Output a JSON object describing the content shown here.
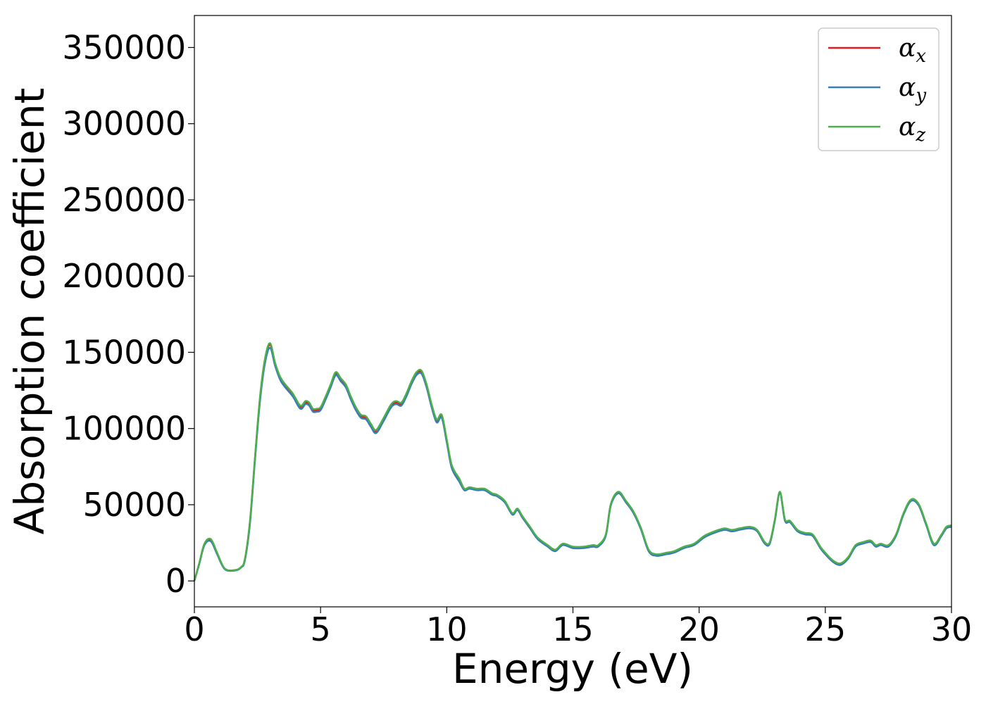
{
  "chart_data": {
    "type": "line",
    "xlabel": "Energy (eV)",
    "ylabel": "Absorption coefficient",
    "xlim": [
      0,
      30
    ],
    "ylim": [
      -17000,
      371000
    ],
    "xticks": [
      0,
      5,
      10,
      15,
      20,
      25,
      30
    ],
    "xtick_labels": [
      "0",
      "5",
      "10",
      "15",
      "20",
      "25",
      "30"
    ],
    "yticks": [
      0,
      50000,
      100000,
      150000,
      200000,
      250000,
      300000,
      350000
    ],
    "ytick_labels": [
      "0",
      "50000",
      "100000",
      "150000",
      "200000",
      "250000",
      "300000",
      "350000"
    ],
    "grid": false,
    "legend_position": "top-right",
    "x": [
      0,
      0.2,
      0.4,
      0.65,
      0.9,
      1.2,
      1.6,
      1.85,
      2.0,
      2.2,
      2.4,
      2.6,
      2.8,
      3.0,
      3.2,
      3.4,
      3.6,
      3.9,
      4.2,
      4.4,
      4.55,
      4.7,
      4.85,
      5.0,
      5.2,
      5.4,
      5.6,
      5.8,
      6.0,
      6.2,
      6.4,
      6.6,
      6.8,
      7.0,
      7.2,
      7.5,
      7.8,
      8.0,
      8.2,
      8.4,
      8.6,
      8.8,
      9.0,
      9.2,
      9.4,
      9.6,
      9.8,
      10.0,
      10.2,
      10.5,
      10.7,
      10.9,
      11.2,
      11.5,
      11.8,
      12.0,
      12.3,
      12.6,
      12.8,
      13.0,
      13.3,
      13.6,
      14.0,
      14.3,
      14.6,
      15.0,
      15.4,
      15.8,
      16.0,
      16.3,
      16.5,
      16.8,
      17.1,
      17.4,
      17.7,
      18.0,
      18.3,
      18.7,
      19.0,
      19.4,
      19.8,
      20.2,
      20.6,
      21.0,
      21.3,
      21.6,
      22.0,
      22.3,
      22.6,
      22.8,
      23.0,
      23.2,
      23.4,
      23.6,
      23.9,
      24.2,
      24.5,
      24.8,
      25.0,
      25.3,
      25.6,
      25.9,
      26.2,
      26.5,
      26.8,
      27.0,
      27.2,
      27.5,
      27.8,
      28.1,
      28.4,
      28.7,
      29.0,
      29.3,
      29.6,
      29.8,
      30.0
    ],
    "series": [
      {
        "name": "αx",
        "color": "#e41a1c",
        "values": [
          0,
          12000,
          24000,
          27000,
          18000,
          8000,
          7000,
          9000,
          14000,
          38000,
          80000,
          120000,
          145000,
          155000,
          142000,
          133000,
          128000,
          122000,
          114000,
          117000,
          116000,
          112000,
          112000,
          113000,
          120000,
          128000,
          136000,
          132000,
          128000,
          120000,
          113000,
          108000,
          107000,
          102000,
          98000,
          106000,
          115000,
          117000,
          116000,
          122000,
          130000,
          136000,
          137000,
          128000,
          115000,
          105000,
          108000,
          92000,
          75000,
          66000,
          60000,
          61000,
          60000,
          60000,
          57000,
          56000,
          52000,
          44000,
          47000,
          42000,
          35000,
          28000,
          23000,
          20000,
          24000,
          22000,
          22000,
          23000,
          23000,
          30000,
          50000,
          58000,
          52000,
          45000,
          34000,
          20000,
          17000,
          18000,
          19000,
          22000,
          24000,
          29000,
          32000,
          34000,
          33000,
          34000,
          35000,
          33000,
          25000,
          25000,
          40000,
          58000,
          40000,
          39000,
          33000,
          31000,
          30000,
          22000,
          18000,
          13000,
          11000,
          15000,
          23000,
          25000,
          26000,
          23000,
          24000,
          23000,
          30000,
          44000,
          53000,
          50000,
          37000,
          24000,
          30000,
          35000,
          36000
        ]
      },
      {
        "name": "αy",
        "color": "#377eb8",
        "values": [
          0,
          11500,
          23500,
          26000,
          17500,
          7800,
          6800,
          8800,
          13500,
          37000,
          79000,
          118000,
          143000,
          153000,
          141000,
          132000,
          127000,
          121000,
          113000,
          116000,
          115000,
          111000,
          111000,
          112000,
          119000,
          127000,
          135000,
          131000,
          127000,
          119000,
          112000,
          107000,
          106000,
          101000,
          97000,
          105000,
          114000,
          116000,
          115000,
          121000,
          129000,
          135000,
          136000,
          127000,
          114000,
          104000,
          107000,
          91000,
          74000,
          65000,
          59500,
          60500,
          59500,
          59500,
          56500,
          55500,
          51500,
          43500,
          46500,
          41500,
          34500,
          27500,
          22500,
          19500,
          23500,
          21500,
          21500,
          22500,
          22500,
          29500,
          49500,
          57500,
          51500,
          44500,
          33500,
          19500,
          16500,
          17500,
          18500,
          21500,
          23500,
          28500,
          31500,
          33500,
          32500,
          33500,
          34500,
          32500,
          24500,
          24500,
          39500,
          57500,
          39500,
          38500,
          32500,
          30500,
          29500,
          21500,
          17500,
          12500,
          10500,
          14500,
          22500,
          24500,
          25500,
          22500,
          23500,
          22500,
          29500,
          43500,
          52500,
          49500,
          36500,
          23500,
          29500,
          34500,
          35500
        ]
      },
      {
        "name": "αz",
        "color": "#4daf4a",
        "values": [
          0,
          12200,
          24500,
          27500,
          18500,
          8200,
          7100,
          9100,
          14500,
          39000,
          81000,
          121000,
          146000,
          156000,
          143000,
          134000,
          129000,
          123000,
          115000,
          118000,
          117000,
          113000,
          113000,
          114000,
          121000,
          129000,
          137000,
          133000,
          129000,
          121000,
          114000,
          109000,
          108000,
          103000,
          99000,
          107000,
          116000,
          118000,
          117000,
          123000,
          131000,
          137000,
          138000,
          129000,
          116000,
          106000,
          109000,
          93000,
          76000,
          67000,
          60500,
          61500,
          60500,
          60500,
          57500,
          56500,
          52500,
          44500,
          47500,
          42500,
          35500,
          28500,
          23500,
          20500,
          24500,
          22500,
          22500,
          23500,
          23500,
          30500,
          50500,
          58500,
          52500,
          45500,
          34500,
          20500,
          17500,
          18500,
          19500,
          22500,
          24500,
          29500,
          32500,
          34500,
          33500,
          34500,
          35500,
          33500,
          25500,
          25500,
          40500,
          58500,
          40500,
          39500,
          33500,
          31500,
          30500,
          22500,
          18500,
          13500,
          11500,
          15500,
          23500,
          25500,
          26500,
          23500,
          24500,
          23500,
          30500,
          44500,
          53500,
          50500,
          37500,
          24500,
          30500,
          35500,
          36500
        ]
      }
    ]
  }
}
